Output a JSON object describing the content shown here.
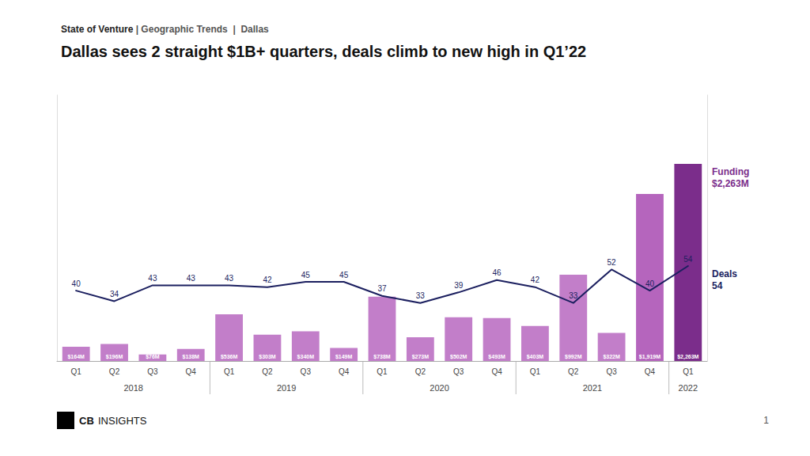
{
  "chart_data": {
    "type": "bar",
    "title": "Dallas sees 2 straight $1B+ quarters, deals climb to new high in Q1’22",
    "subtitle": [
      "State of Venture",
      " | Geographic Trends  |  Dallas"
    ],
    "categories": [
      "Q1",
      "Q2",
      "Q3",
      "Q4",
      "Q1",
      "Q2",
      "Q3",
      "Q4",
      "Q1",
      "Q2",
      "Q3",
      "Q4",
      "Q1",
      "Q2",
      "Q3",
      "Q4",
      "Q1"
    ],
    "years": [
      "2018",
      "2018",
      "2018",
      "2018",
      "2019",
      "2019",
      "2019",
      "2019",
      "2020",
      "2020",
      "2020",
      "2020",
      "2021",
      "2021",
      "2021",
      "2021",
      "2022"
    ],
    "series": [
      {
        "type": "bar",
        "values": [
          164,
          196,
          76,
          138,
          536,
          303,
          340,
          149,
          738,
          273,
          502,
          493,
          403,
          992,
          322,
          1919,
          2263
        ],
        "value_labels": [
          "$164M",
          "$196M",
          "$76M",
          "$138M",
          "$536M",
          "$303M",
          "$340M",
          "$149M",
          "$738M",
          "$273M",
          "$502M",
          "$493M",
          "$403M",
          "$992M",
          "$322M",
          "$1,919M",
          "$2,263M"
        ],
        "colors": [
          "#c27ec9",
          "#c27ec9",
          "#c27ec9",
          "#c27ec9",
          "#c27ec9",
          "#c27ec9",
          "#c27ec9",
          "#c27ec9",
          "#c27ec9",
          "#c27ec9",
          "#c27ec9",
          "#c27ec9",
          "#c27ec9",
          "#c27ec9",
          "#c27ec9",
          "#b565bd",
          "#7b2d8b"
        ],
        "annotation": {
          "text": "Funding\n$2,263M",
          "color": "#7b2d8b"
        }
      },
      {
        "type": "line",
        "axis": "y2",
        "color": "#1b1f5f",
        "values": [
          40,
          34,
          43,
          43,
          43,
          42,
          45,
          45,
          37,
          33,
          39,
          46,
          42,
          33,
          52,
          40,
          54
        ],
        "annotation": {
          "text": "Deals\n54",
          "color": "#1b1f5f"
        }
      }
    ],
    "ylim": [
      0,
      3055.05
    ],
    "y2lim": [
      0,
      151.2
    ],
    "tick_labels": "x",
    "data_labels": true,
    "grid": false,
    "logo": [
      "CB",
      "INSIGHTS"
    ],
    "page_number": "1"
  }
}
